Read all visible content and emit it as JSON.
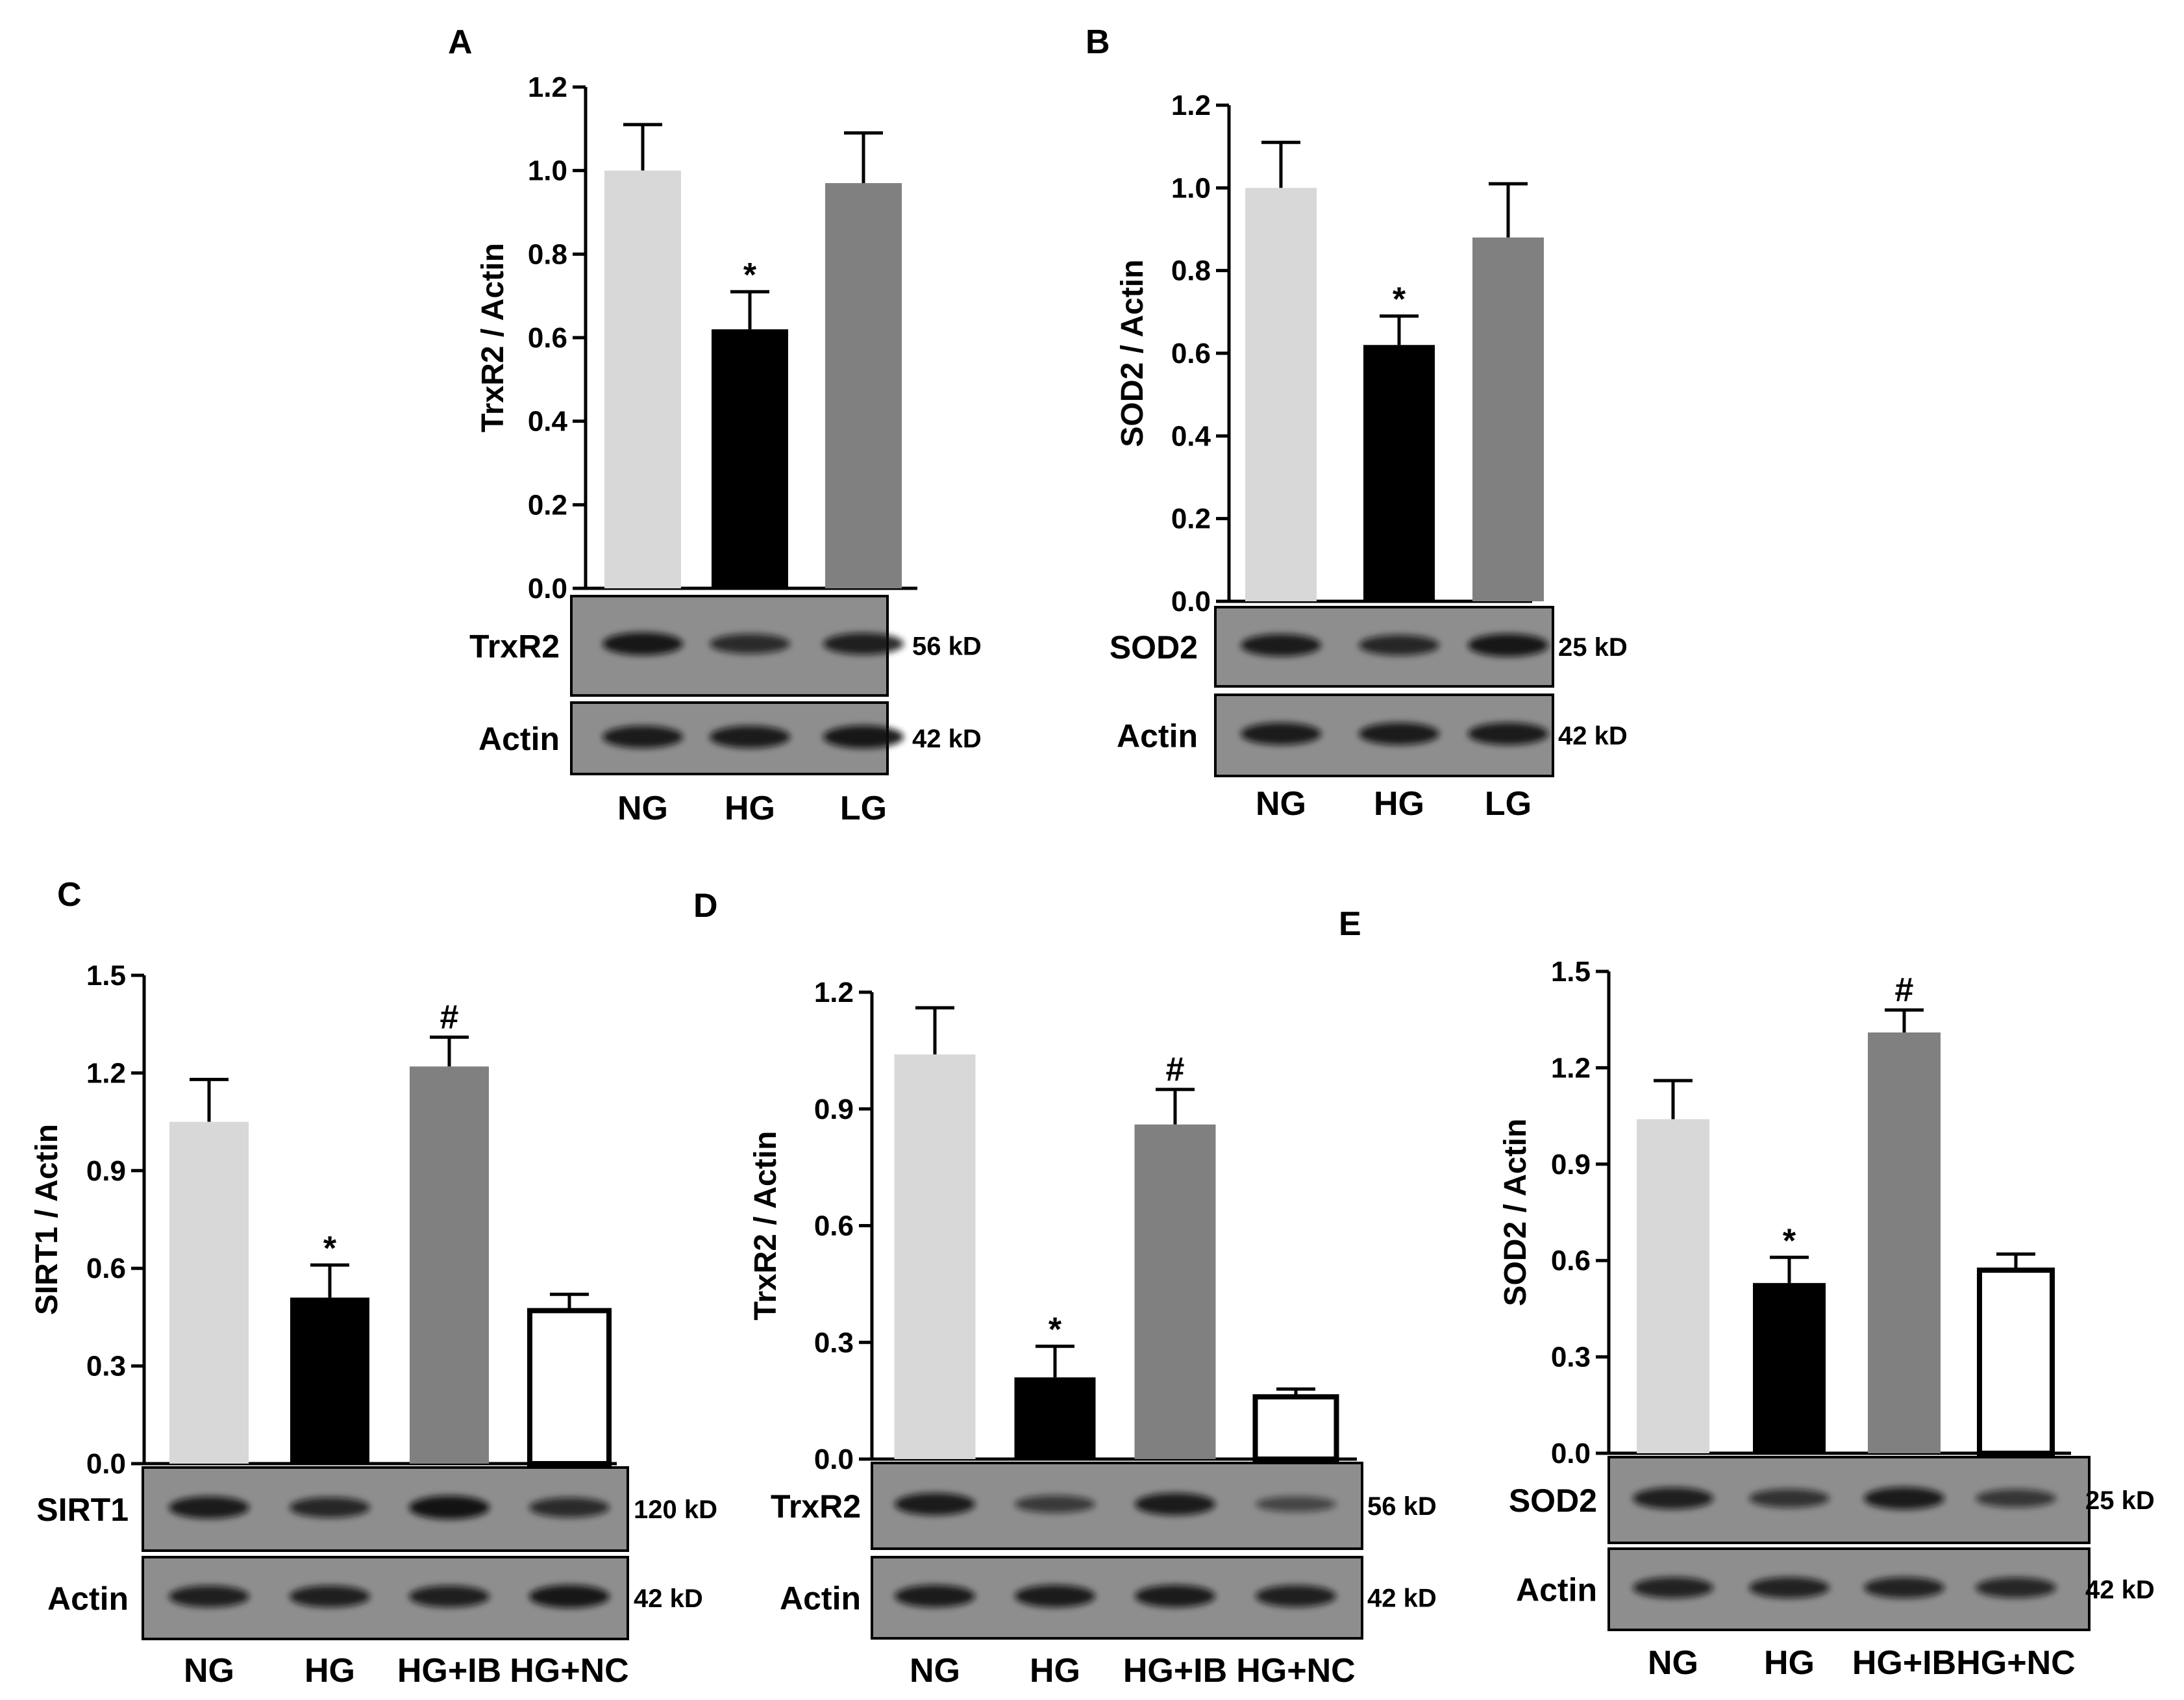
{
  "colors": {
    "NG": "#d8d8d8",
    "HG": "#000000",
    "LG": "#808080",
    "HG+IB": "#808080",
    "HG+NC": "#ffffff",
    "blot_bg": "#8e8e8e",
    "band": "#111111"
  },
  "chart_data": [
    {
      "panel": "A",
      "type": "bar",
      "title": "",
      "xlabel": "",
      "ylabel": "TrxR2 / Actin",
      "ylim": [
        0,
        1.2
      ],
      "yticks": [
        "0.0",
        "0.2",
        "0.4",
        "0.6",
        "0.8",
        "1.0",
        "1.2"
      ],
      "categories": [
        "NG",
        "HG",
        "LG"
      ],
      "values": [
        1.0,
        0.62,
        0.97
      ],
      "errors": [
        0.11,
        0.09,
        0.12
      ],
      "marks": [
        "",
        "*",
        ""
      ],
      "blots": [
        {
          "label": "TrxR2",
          "kd": "56 kD",
          "bands": [
            0.95,
            0.7,
            0.85
          ]
        },
        {
          "label": "Actin",
          "kd": "42 kD",
          "bands": [
            0.9,
            0.9,
            0.95
          ]
        }
      ]
    },
    {
      "panel": "B",
      "type": "bar",
      "title": "",
      "xlabel": "",
      "ylabel": "SOD2 / Actin",
      "ylim": [
        0,
        1.2
      ],
      "yticks": [
        "0.0",
        "0.2",
        "0.4",
        "0.6",
        "0.8",
        "1.0",
        "1.2"
      ],
      "categories": [
        "NG",
        "HG",
        "LG"
      ],
      "values": [
        1.0,
        0.62,
        0.88
      ],
      "errors": [
        0.11,
        0.07,
        0.13
      ],
      "marks": [
        "",
        "*",
        ""
      ],
      "blots": [
        {
          "label": "SOD2",
          "kd": "25 kD",
          "bands": [
            0.9,
            0.75,
            0.95
          ]
        },
        {
          "label": "Actin",
          "kd": "42 kD",
          "bands": [
            0.9,
            0.9,
            0.9
          ]
        }
      ]
    },
    {
      "panel": "C",
      "type": "bar",
      "title": "",
      "xlabel": "",
      "ylabel": "SIRT1 / Actin",
      "ylim": [
        0,
        1.5
      ],
      "yticks": [
        "0.0",
        "0.3",
        "0.6",
        "0.9",
        "1.2",
        "1.5"
      ],
      "categories": [
        "NG",
        "HG",
        "HG+IB",
        "HG+NC"
      ],
      "values": [
        1.05,
        0.51,
        1.22,
        0.47
      ],
      "errors": [
        0.13,
        0.1,
        0.09,
        0.05
      ],
      "marks": [
        "",
        "*",
        "#",
        ""
      ],
      "blots": [
        {
          "label": "SIRT1",
          "kd": "120 kD",
          "bands": [
            0.9,
            0.75,
            1.0,
            0.7
          ]
        },
        {
          "label": "Actin",
          "kd": "42 kD",
          "bands": [
            0.85,
            0.85,
            0.85,
            0.95
          ]
        }
      ]
    },
    {
      "panel": "D",
      "type": "bar",
      "title": "",
      "xlabel": "",
      "ylabel": "TrxR2 / Actin",
      "ylim": [
        0,
        1.2
      ],
      "yticks": [
        "0.0",
        "0.3",
        "0.6",
        "0.9",
        "1.2"
      ],
      "categories": [
        "NG",
        "HG",
        "HG+IB",
        "HG+NC"
      ],
      "values": [
        1.04,
        0.21,
        0.86,
        0.16
      ],
      "errors": [
        0.12,
        0.08,
        0.09,
        0.02
      ],
      "marks": [
        "",
        "*",
        "#",
        ""
      ],
      "blots": [
        {
          "label": "TrxR2",
          "kd": "56 kD",
          "bands": [
            0.9,
            0.5,
            0.9,
            0.35
          ]
        },
        {
          "label": "Actin",
          "kd": "42 kD",
          "bands": [
            0.9,
            0.9,
            0.9,
            0.85
          ]
        }
      ]
    },
    {
      "panel": "E",
      "type": "bar",
      "title": "",
      "xlabel": "",
      "ylabel": "SOD2 / Actin",
      "ylim": [
        0,
        1.5
      ],
      "yticks": [
        "0.0",
        "0.3",
        "0.6",
        "0.9",
        "1.2",
        "1.5"
      ],
      "categories": [
        "NG",
        "HG",
        "HG+IB",
        "HG+NC"
      ],
      "values": [
        1.04,
        0.53,
        1.31,
        0.57
      ],
      "errors": [
        0.12,
        0.08,
        0.07,
        0.05
      ],
      "marks": [
        "",
        "*",
        "#",
        ""
      ],
      "blots": [
        {
          "label": "SOD2",
          "kd": "25 kD",
          "bands": [
            0.85,
            0.6,
            0.9,
            0.55
          ]
        },
        {
          "label": "Actin",
          "kd": "42 kD",
          "bands": [
            0.8,
            0.8,
            0.8,
            0.75
          ]
        }
      ]
    }
  ]
}
